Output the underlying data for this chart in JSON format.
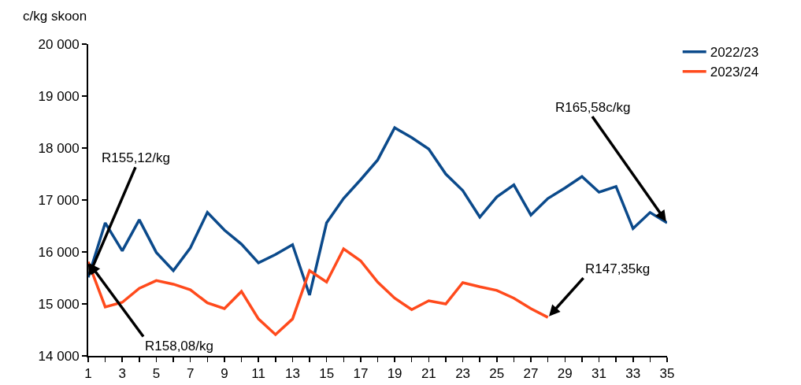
{
  "chart_data": {
    "type": "line",
    "ylabel": "c/kg skoon",
    "x": [
      1,
      2,
      3,
      4,
      5,
      6,
      7,
      8,
      9,
      10,
      11,
      12,
      13,
      14,
      15,
      16,
      17,
      18,
      19,
      20,
      21,
      22,
      23,
      24,
      25,
      26,
      27,
      28,
      29,
      30,
      31,
      32,
      33,
      34,
      35
    ],
    "series": [
      {
        "name": "2022/23",
        "color": "#0b4a8b",
        "values": [
          15510,
          16560,
          16020,
          16620,
          15990,
          15640,
          16080,
          16760,
          16420,
          16150,
          15790,
          15950,
          16140,
          15170,
          16560,
          17030,
          17390,
          17770,
          18390,
          18200,
          17980,
          17500,
          17180,
          16670,
          17060,
          17290,
          16710,
          17030,
          17230,
          17450,
          17150,
          17260,
          16450,
          16760,
          16560
        ]
      },
      {
        "name": "2023/24",
        "color": "#ff4a1c",
        "values": [
          15810,
          14940,
          15030,
          15300,
          15450,
          15380,
          15270,
          15020,
          14910,
          15240,
          14710,
          14410,
          14710,
          15640,
          15420,
          16060,
          15830,
          15420,
          15110,
          14890,
          15060,
          15000,
          15410,
          15330,
          15260,
          15110,
          14910,
          14740,
          null,
          null,
          null,
          null,
          null,
          null,
          null
        ]
      }
    ],
    "xlim": [
      1,
      35
    ],
    "xticks": [
      1,
      {
        "value": 2,
        "label": null
      },
      3,
      {
        "value": 4,
        "label": null
      },
      5,
      {
        "value": 6,
        "label": null
      },
      7,
      {
        "value": 8,
        "label": null
      },
      9,
      {
        "value": 10,
        "label": null
      },
      11,
      {
        "value": 12,
        "label": null
      },
      13,
      {
        "value": 14,
        "label": null
      },
      15,
      {
        "value": 16,
        "label": null
      },
      17,
      {
        "value": 18,
        "label": null
      },
      19,
      {
        "value": 20,
        "label": null
      },
      21,
      {
        "value": 22,
        "label": null
      },
      23,
      {
        "value": 24,
        "label": null
      },
      25,
      {
        "value": 26,
        "label": null
      },
      27,
      {
        "value": 28,
        "label": null
      },
      29,
      {
        "value": 30,
        "label": null
      },
      31,
      {
        "value": 32,
        "label": null
      },
      33,
      {
        "value": 34,
        "label": null
      },
      35
    ],
    "ylim": [
      14000,
      20000
    ],
    "yticks": [
      {
        "value": 14000,
        "label": "14 000"
      },
      {
        "value": 15000,
        "label": "15 000"
      },
      {
        "value": 16000,
        "label": "16 000"
      },
      {
        "value": 17000,
        "label": "17 000"
      },
      {
        "value": 18000,
        "label": "18 000"
      },
      {
        "value": 19000,
        "label": "19 000"
      },
      {
        "value": 20000,
        "label": "20 000"
      }
    ],
    "annotations": [
      {
        "text": "R155,12/kg",
        "x": 1,
        "y": 15510
      },
      {
        "text": "R158,08/kg",
        "x": 1,
        "y": 15810
      },
      {
        "text": "R165,58c/kg",
        "x": 35,
        "y": 16560
      },
      {
        "text": "R147,35kg",
        "x": 28,
        "y": 14740
      }
    ],
    "grid": false,
    "legend": "right",
    "marker": "none",
    "line_style": "solid"
  }
}
